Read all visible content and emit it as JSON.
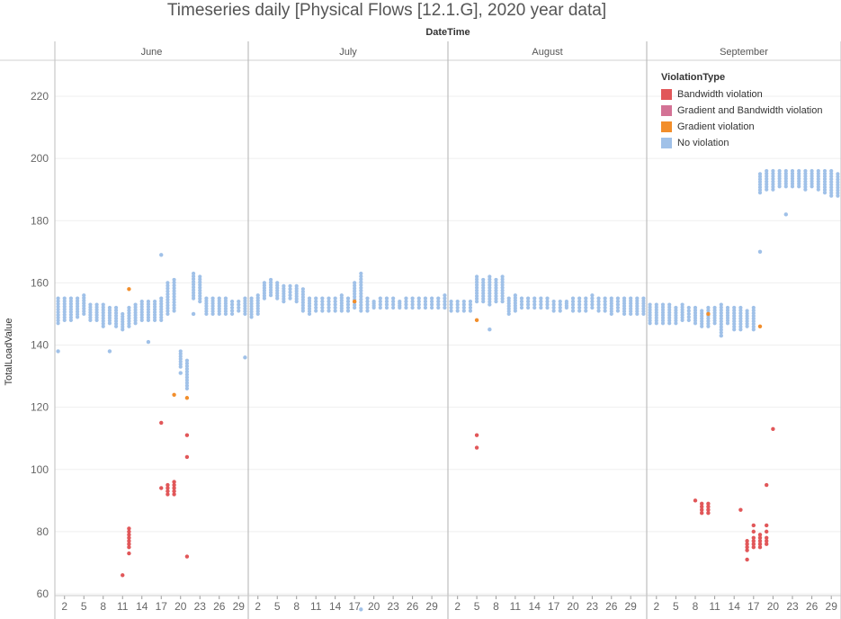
{
  "chart_data": {
    "type": "scatter",
    "title": "Timeseries daily [Physical Flows [12.1.G], 2020 year data]",
    "xlabel": "DateTime",
    "ylabel": "TotalLoadValue",
    "ylim": [
      60,
      230
    ],
    "yticks": [
      60,
      80,
      100,
      120,
      140,
      160,
      180,
      200,
      220
    ],
    "grid": true,
    "legend_position": "top-right",
    "months": [
      {
        "name": "June",
        "days": 30,
        "ticks": [
          "2",
          "5",
          "8",
          "11",
          "14",
          "17",
          "20",
          "23",
          "26",
          "29"
        ]
      },
      {
        "name": "July",
        "days": 31,
        "ticks": [
          "2",
          "5",
          "8",
          "11",
          "14",
          "17",
          "20",
          "23",
          "26",
          "29"
        ]
      },
      {
        "name": "August",
        "days": 31,
        "ticks": [
          "2",
          "5",
          "8",
          "11",
          "14",
          "17",
          "20",
          "23",
          "26",
          "29"
        ]
      },
      {
        "name": "September",
        "days": 30,
        "ticks": [
          "2",
          "5",
          "8",
          "11",
          "14",
          "17",
          "20",
          "23",
          "26",
          "29"
        ]
      }
    ],
    "legend": {
      "title": "ViolationType",
      "items": [
        {
          "name": "Bandwidth violation",
          "color": "#e15759"
        },
        {
          "name": "Gradient and Bandwidth violation",
          "color": "#d37295"
        },
        {
          "name": "Gradient violation",
          "color": "#f28e2b"
        },
        {
          "name": "No violation",
          "color": "#a0c1e8"
        }
      ]
    },
    "no_violation_bands": [
      [
        0,
        [
          147,
          155
        ]
      ],
      [
        1,
        [
          148,
          155
        ]
      ],
      [
        2,
        [
          148,
          155
        ]
      ],
      [
        3,
        [
          149,
          155
        ]
      ],
      [
        4,
        [
          150,
          156
        ]
      ],
      [
        5,
        [
          148,
          153
        ]
      ],
      [
        6,
        [
          148,
          153
        ]
      ],
      [
        7,
        [
          146,
          153
        ]
      ],
      [
        8,
        [
          147,
          152
        ]
      ],
      [
        9,
        [
          146,
          152
        ]
      ],
      [
        10,
        [
          145,
          150
        ]
      ],
      [
        11,
        [
          146,
          152
        ]
      ],
      [
        12,
        [
          147,
          153
        ]
      ],
      [
        13,
        [
          148,
          154
        ]
      ],
      [
        14,
        [
          148,
          154
        ]
      ],
      [
        15,
        [
          148,
          154
        ]
      ],
      [
        16,
        [
          148,
          155
        ]
      ],
      [
        17,
        [
          150,
          160
        ]
      ],
      [
        18,
        [
          151,
          161
        ]
      ],
      [
        19,
        [
          133,
          138
        ]
      ],
      [
        20,
        [
          126,
          135
        ]
      ],
      [
        21,
        [
          155,
          163
        ]
      ],
      [
        22,
        [
          154,
          162
        ]
      ],
      [
        23,
        [
          150,
          155
        ]
      ],
      [
        24,
        [
          150,
          155
        ]
      ],
      [
        25,
        [
          150,
          155
        ]
      ],
      [
        26,
        [
          150,
          155
        ]
      ],
      [
        27,
        [
          150,
          154
        ]
      ],
      [
        28,
        [
          151,
          154
        ]
      ],
      [
        29,
        [
          150,
          155
        ]
      ],
      [
        30,
        [
          149,
          155
        ]
      ],
      [
        31,
        [
          150,
          156
        ]
      ],
      [
        32,
        [
          155,
          160
        ]
      ],
      [
        33,
        [
          156,
          161
        ]
      ],
      [
        34,
        [
          155,
          160
        ]
      ],
      [
        35,
        [
          154,
          159
        ]
      ],
      [
        36,
        [
          155,
          159
        ]
      ],
      [
        37,
        [
          154,
          159
        ]
      ],
      [
        38,
        [
          151,
          158
        ]
      ],
      [
        39,
        [
          150,
          155
        ]
      ],
      [
        40,
        [
          151,
          155
        ]
      ],
      [
        41,
        [
          151,
          155
        ]
      ],
      [
        42,
        [
          151,
          155
        ]
      ],
      [
        43,
        [
          151,
          155
        ]
      ],
      [
        44,
        [
          151,
          156
        ]
      ],
      [
        45,
        [
          151,
          155
        ]
      ],
      [
        46,
        [
          152,
          160
        ]
      ],
      [
        47,
        [
          151,
          163
        ]
      ],
      [
        48,
        [
          151,
          155
        ]
      ],
      [
        49,
        [
          152,
          154
        ]
      ],
      [
        50,
        [
          152,
          155
        ]
      ],
      [
        51,
        [
          152,
          155
        ]
      ],
      [
        52,
        [
          152,
          155
        ]
      ],
      [
        53,
        [
          152,
          154
        ]
      ],
      [
        54,
        [
          152,
          155
        ]
      ],
      [
        55,
        [
          152,
          155
        ]
      ],
      [
        56,
        [
          152,
          155
        ]
      ],
      [
        57,
        [
          152,
          155
        ]
      ],
      [
        58,
        [
          152,
          155
        ]
      ],
      [
        59,
        [
          152,
          155
        ]
      ],
      [
        60,
        [
          152,
          156
        ]
      ],
      [
        61,
        [
          151,
          154
        ]
      ],
      [
        62,
        [
          151,
          154
        ]
      ],
      [
        63,
        [
          151,
          154
        ]
      ],
      [
        64,
        [
          151,
          154
        ]
      ],
      [
        65,
        [
          154,
          162
        ]
      ],
      [
        66,
        [
          154,
          161
        ]
      ],
      [
        67,
        [
          153,
          162
        ]
      ],
      [
        68,
        [
          154,
          161
        ]
      ],
      [
        69,
        [
          154,
          162
        ]
      ],
      [
        70,
        [
          150,
          155
        ]
      ],
      [
        71,
        [
          151,
          156
        ]
      ],
      [
        72,
        [
          152,
          155
        ]
      ],
      [
        73,
        [
          152,
          155
        ]
      ],
      [
        74,
        [
          152,
          155
        ]
      ],
      [
        75,
        [
          152,
          155
        ]
      ],
      [
        76,
        [
          152,
          155
        ]
      ],
      [
        77,
        [
          151,
          154
        ]
      ],
      [
        78,
        [
          151,
          154
        ]
      ],
      [
        79,
        [
          152,
          154
        ]
      ],
      [
        80,
        [
          151,
          155
        ]
      ],
      [
        81,
        [
          151,
          155
        ]
      ],
      [
        82,
        [
          151,
          155
        ]
      ],
      [
        83,
        [
          152,
          156
        ]
      ],
      [
        84,
        [
          151,
          155
        ]
      ],
      [
        85,
        [
          151,
          155
        ]
      ],
      [
        86,
        [
          150,
          155
        ]
      ],
      [
        87,
        [
          151,
          155
        ]
      ],
      [
        88,
        [
          150,
          155
        ]
      ],
      [
        89,
        [
          150,
          155
        ]
      ],
      [
        90,
        [
          150,
          155
        ]
      ],
      [
        91,
        [
          150,
          155
        ]
      ],
      [
        92,
        [
          147,
          153
        ]
      ],
      [
        93,
        [
          147,
          153
        ]
      ],
      [
        94,
        [
          147,
          153
        ]
      ],
      [
        95,
        [
          147,
          153
        ]
      ],
      [
        96,
        [
          147,
          152
        ]
      ],
      [
        97,
        [
          148,
          153
        ]
      ],
      [
        98,
        [
          148,
          152
        ]
      ],
      [
        99,
        [
          147,
          152
        ]
      ],
      [
        100,
        [
          146,
          151
        ]
      ],
      [
        101,
        [
          146,
          152
        ]
      ],
      [
        102,
        [
          147,
          152
        ]
      ],
      [
        103,
        [
          144,
          153
        ]
      ],
      [
        104,
        [
          147,
          152
        ]
      ],
      [
        105,
        [
          145,
          152
        ]
      ],
      [
        106,
        [
          145,
          152
        ]
      ],
      [
        107,
        [
          146,
          151
        ]
      ],
      [
        108,
        [
          145,
          152
        ]
      ],
      [
        109,
        [
          189,
          195
        ]
      ],
      [
        110,
        [
          190,
          196
        ]
      ],
      [
        111,
        [
          190,
          196
        ]
      ],
      [
        112,
        [
          191,
          196
        ]
      ],
      [
        113,
        [
          191,
          196
        ]
      ],
      [
        114,
        [
          191,
          196
        ]
      ],
      [
        115,
        [
          191,
          196
        ]
      ],
      [
        116,
        [
          190,
          196
        ]
      ],
      [
        117,
        [
          191,
          196
        ]
      ],
      [
        118,
        [
          190,
          196
        ]
      ],
      [
        119,
        [
          189,
          196
        ]
      ],
      [
        120,
        [
          188,
          196
        ]
      ],
      [
        121,
        [
          188,
          195
        ]
      ]
    ],
    "single_points": [
      [
        0,
        138,
        "No violation"
      ],
      [
        8,
        138,
        "No violation"
      ],
      [
        14,
        141,
        "No violation"
      ],
      [
        16,
        169,
        "No violation"
      ],
      [
        29,
        136,
        "No violation"
      ],
      [
        19,
        131,
        "No violation"
      ],
      [
        21,
        150,
        "No violation"
      ],
      [
        67,
        145,
        "No violation"
      ],
      [
        103,
        143,
        "No violation"
      ],
      [
        113,
        182,
        "No violation"
      ],
      [
        109,
        170,
        "No violation"
      ],
      [
        11,
        158,
        "Gradient violation"
      ],
      [
        18,
        124,
        "Gradient violation"
      ],
      [
        20,
        123,
        "Gradient violation"
      ],
      [
        46,
        154,
        "Gradient violation"
      ],
      [
        65,
        148,
        "Gradient violation"
      ],
      [
        101,
        150,
        "Gradient violation"
      ],
      [
        109,
        146,
        "Gradient violation"
      ],
      [
        16,
        115,
        "Bandwidth violation"
      ],
      [
        20,
        111,
        "Bandwidth violation"
      ],
      [
        20,
        104,
        "Bandwidth violation"
      ],
      [
        20,
        72,
        "Bandwidth violation"
      ],
      [
        10,
        66,
        "Bandwidth violation"
      ],
      [
        11,
        73,
        "Bandwidth violation"
      ],
      [
        11,
        75,
        "Bandwidth violation"
      ],
      [
        11,
        76,
        "Bandwidth violation"
      ],
      [
        11,
        77,
        "Bandwidth violation"
      ],
      [
        11,
        78,
        "Bandwidth violation"
      ],
      [
        11,
        79,
        "Bandwidth violation"
      ],
      [
        11,
        80,
        "Bandwidth violation"
      ],
      [
        11,
        81,
        "Bandwidth violation"
      ],
      [
        16,
        94,
        "Bandwidth violation"
      ],
      [
        17,
        92,
        "Bandwidth violation"
      ],
      [
        17,
        93,
        "Bandwidth violation"
      ],
      [
        17,
        94,
        "Bandwidth violation"
      ],
      [
        17,
        95,
        "Bandwidth violation"
      ],
      [
        18,
        92,
        "Bandwidth violation"
      ],
      [
        18,
        93,
        "Bandwidth violation"
      ],
      [
        18,
        94,
        "Bandwidth violation"
      ],
      [
        18,
        95,
        "Bandwidth violation"
      ],
      [
        18,
        96,
        "Bandwidth violation"
      ],
      [
        65,
        111,
        "Bandwidth violation"
      ],
      [
        65,
        107,
        "Bandwidth violation"
      ],
      [
        99,
        90,
        "Bandwidth violation"
      ],
      [
        100,
        86,
        "Bandwidth violation"
      ],
      [
        100,
        87,
        "Bandwidth violation"
      ],
      [
        100,
        88,
        "Bandwidth violation"
      ],
      [
        100,
        89,
        "Bandwidth violation"
      ],
      [
        101,
        86,
        "Bandwidth violation"
      ],
      [
        101,
        87,
        "Bandwidth violation"
      ],
      [
        101,
        88,
        "Bandwidth violation"
      ],
      [
        101,
        89,
        "Bandwidth violation"
      ],
      [
        106,
        87,
        "Bandwidth violation"
      ],
      [
        107,
        71,
        "Bandwidth violation"
      ],
      [
        107,
        74,
        "Bandwidth violation"
      ],
      [
        107,
        75,
        "Bandwidth violation"
      ],
      [
        107,
        76,
        "Bandwidth violation"
      ],
      [
        107,
        77,
        "Bandwidth violation"
      ],
      [
        108,
        75,
        "Bandwidth violation"
      ],
      [
        108,
        76,
        "Bandwidth violation"
      ],
      [
        108,
        77,
        "Bandwidth violation"
      ],
      [
        108,
        78,
        "Bandwidth violation"
      ],
      [
        108,
        80,
        "Bandwidth violation"
      ],
      [
        108,
        82,
        "Bandwidth violation"
      ],
      [
        109,
        75,
        "Bandwidth violation"
      ],
      [
        109,
        76,
        "Bandwidth violation"
      ],
      [
        109,
        77,
        "Bandwidth violation"
      ],
      [
        109,
        78,
        "Bandwidth violation"
      ],
      [
        109,
        79,
        "Bandwidth violation"
      ],
      [
        110,
        76,
        "Bandwidth violation"
      ],
      [
        110,
        77,
        "Bandwidth violation"
      ],
      [
        110,
        78,
        "Bandwidth violation"
      ],
      [
        110,
        80,
        "Bandwidth violation"
      ],
      [
        110,
        82,
        "Bandwidth violation"
      ],
      [
        110,
        95,
        "Bandwidth violation"
      ],
      [
        111,
        113,
        "Bandwidth violation"
      ],
      [
        47,
        55,
        "No violation"
      ]
    ]
  }
}
